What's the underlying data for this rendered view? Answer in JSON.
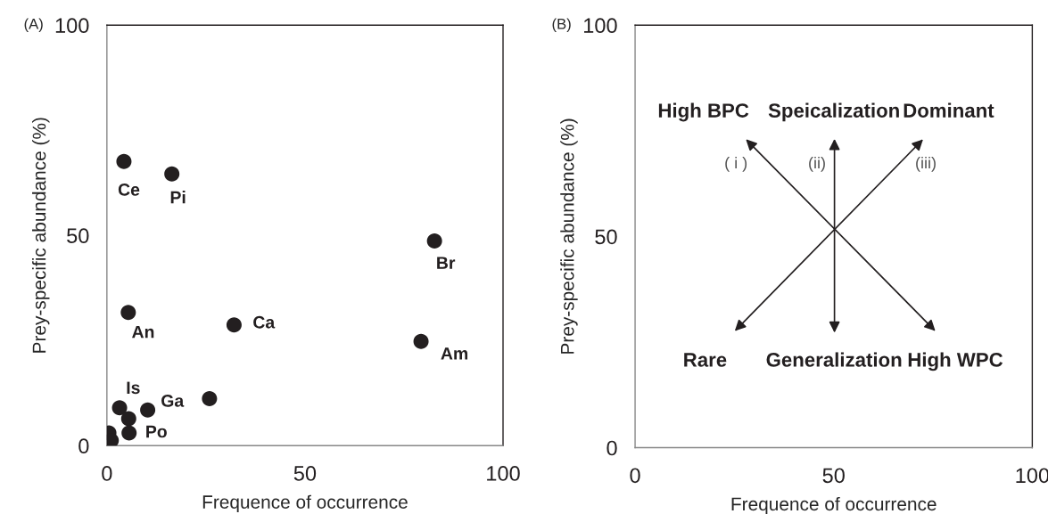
{
  "chart_data": [
    {
      "type": "scatter",
      "title": "(A)",
      "xlabel": "Frequence of occurrence",
      "ylabel": "Prey-specific abundance (%)",
      "x": [
        4.3,
        16.4,
        82.7,
        5.4,
        32.1,
        79.3,
        25.9,
        10.3,
        3.2,
        5.5,
        5.6,
        0.5,
        1.1
      ],
      "values": [
        67.6,
        64.6,
        48.7,
        31.7,
        28.7,
        24.8,
        11.2,
        8.5,
        9.0,
        6.4,
        3.0,
        3.0,
        1.2
      ],
      "color": "#231f20",
      "marker": "circle",
      "xlim": [
        0,
        100
      ],
      "ylim": [
        0,
        100
      ],
      "xticks": [
        0,
        50,
        100
      ],
      "yticks": [
        0,
        50,
        100
      ],
      "grid": false,
      "annotations": [
        {
          "text": "Ce",
          "x": 4.3,
          "y": 67.6
        },
        {
          "text": "Pi",
          "x": 16.4,
          "y": 64.6
        },
        {
          "text": "Br",
          "x": 82.7,
          "y": 48.7
        },
        {
          "text": "An",
          "x": 5.4,
          "y": 31.7
        },
        {
          "text": "Ca",
          "x": 32.1,
          "y": 28.7
        },
        {
          "text": "Am",
          "x": 79.3,
          "y": 24.8
        },
        {
          "text": "Ga",
          "x": 25.9,
          "y": 11.2
        },
        {
          "text": "Is",
          "x": 3.2,
          "y": 9.0
        },
        {
          "text": "Po",
          "x": 5.6,
          "y": 3.0
        }
      ]
    },
    {
      "type": "other",
      "title": "(B)",
      "xlabel": "Frequence of occurrence",
      "ylabel": "Prey-specific abundance (%)",
      "annotations": [
        "High BPC",
        "Speicalization",
        "Dominant",
        "( i )",
        "(ii)",
        "(iii)",
        "Rare",
        "Generalization",
        "High WPC",
        "0",
        "50",
        "100",
        "0",
        "50",
        "100"
      ]
    }
  ]
}
